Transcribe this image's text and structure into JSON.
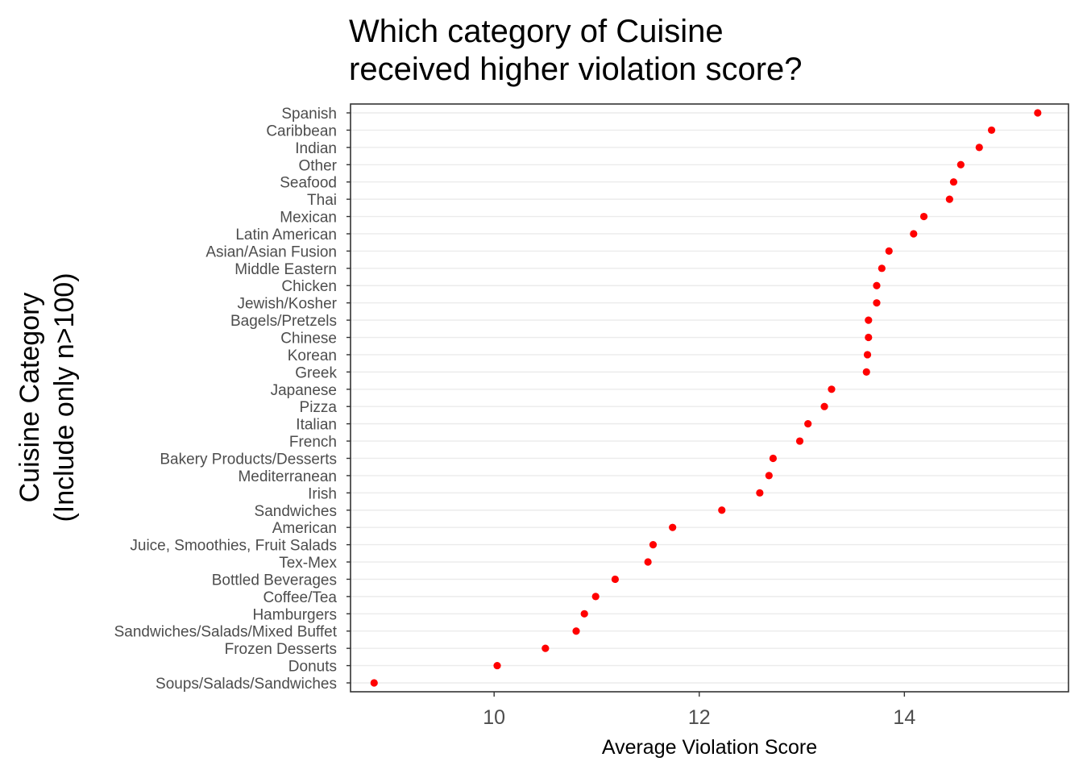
{
  "chart_data": {
    "type": "scatter",
    "title": "Which category of Cuisine\nreceived higher violation score?",
    "xlabel": "Average Violation Score",
    "ylabel": "Cuisine Category\n(Include only n>100)",
    "xlim": [
      8.6,
      15.6
    ],
    "xticks": [
      10,
      12,
      14
    ],
    "grid": {
      "horizontal": true,
      "vertical": false
    },
    "point_color": "#ff0000",
    "categories": [
      "Spanish",
      "Caribbean",
      "Indian",
      "Other",
      "Seafood",
      "Thai",
      "Mexican",
      "Latin American",
      "Asian/Asian Fusion",
      "Middle Eastern",
      "Chicken",
      "Jewish/Kosher",
      "Bagels/Pretzels",
      "Chinese",
      "Korean",
      "Greek",
      "Japanese",
      "Pizza",
      "Italian",
      "French",
      "Bakery Products/Desserts",
      "Mediterranean",
      "Irish",
      "Sandwiches",
      "American",
      "Juice, Smoothies, Fruit Salads",
      "Tex-Mex",
      "Bottled Beverages",
      "Coffee/Tea",
      "Hamburgers",
      "Sandwiches/Salads/Mixed Buffet",
      "Frozen Desserts",
      "Donuts",
      "Soups/Salads/Sandwiches"
    ],
    "values": [
      15.3,
      14.85,
      14.73,
      14.55,
      14.48,
      14.44,
      14.19,
      14.09,
      13.85,
      13.78,
      13.73,
      13.73,
      13.65,
      13.65,
      13.64,
      13.63,
      13.29,
      13.22,
      13.06,
      12.98,
      12.72,
      12.68,
      12.59,
      12.22,
      11.74,
      11.55,
      11.5,
      11.18,
      10.99,
      10.88,
      10.8,
      10.5,
      10.03,
      8.83
    ]
  }
}
